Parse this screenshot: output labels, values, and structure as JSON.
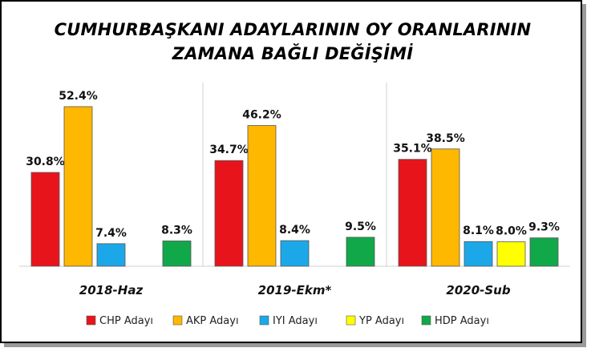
{
  "chart_data": {
    "type": "bar",
    "title_line1": "CUMHURBAŞKANI ADAYLARININ OY ORANLARININ",
    "title_line2": "ZAMANA BAĞLI DEĞİŞİMİ",
    "categories": [
      "2018-Haz",
      "2019-Ekm*",
      "2020-Sub"
    ],
    "series": [
      {
        "name": "CHP Adayı",
        "color": "#e8141c",
        "values": [
          30.8,
          34.7,
          35.1
        ]
      },
      {
        "name": "AKP Adayı",
        "color": "#ffb800",
        "values": [
          52.4,
          46.2,
          38.5
        ]
      },
      {
        "name": "IYI Adayı",
        "color": "#1ca8e8",
        "values": [
          7.4,
          8.4,
          8.1
        ]
      },
      {
        "name": "YP Adayı",
        "color": "#ffff00",
        "values": [
          null,
          null,
          8.0
        ]
      },
      {
        "name": "HDP Adayı",
        "color": "#11a84a",
        "values": [
          8.3,
          9.5,
          9.3
        ]
      }
    ],
    "ylim": [
      0,
      60
    ],
    "value_suffix": "%",
    "grid": false,
    "legend_position": "bottom"
  }
}
